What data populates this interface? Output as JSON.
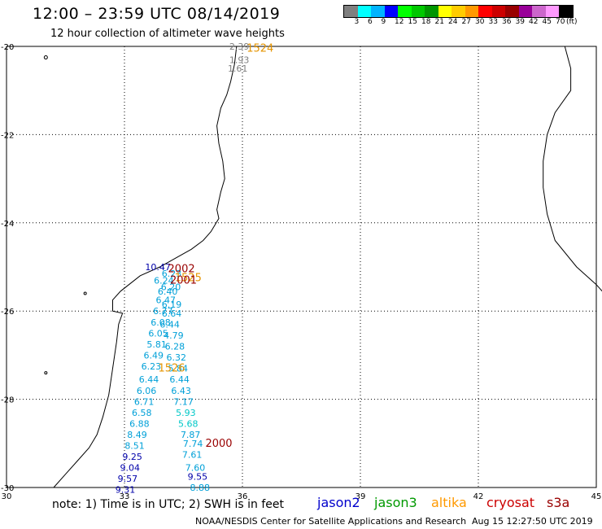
{
  "header": {
    "title": "12:00 – 23:59 UTC 08/14/2019",
    "subtitle": "12 hour collection of altimeter wave heights"
  },
  "color_scale": {
    "colors": [
      "#7f7f7f",
      "#00ffff",
      "#00b4ff",
      "#0000ff",
      "#00ff00",
      "#00c800",
      "#009600",
      "#ffff00",
      "#ffcc00",
      "#ff9900",
      "#ff0000",
      "#cc0000",
      "#990000",
      "#990099",
      "#cc66cc",
      "#ff99ff",
      "#000000"
    ],
    "labels": [
      "3",
      "6",
      "9",
      "12",
      "15",
      "18",
      "21",
      "24",
      "27",
      "30",
      "33",
      "36",
      "39",
      "42",
      "45",
      "70",
      "(ft)"
    ]
  },
  "map": {
    "lon_range": [
      30,
      45
    ],
    "lat_range": [
      -30,
      -20
    ],
    "lon_ticks": [
      "30",
      "33",
      "36",
      "39",
      "42",
      "45"
    ],
    "lat_ticks": [
      "-20",
      "-22",
      "-24",
      "-26",
      "-28",
      "-30"
    ],
    "grid": "dotted",
    "coastline_color": "#000000"
  },
  "observations": [
    {
      "lat": -20.0,
      "lon": 35.92,
      "value": "2.39",
      "color": "#7f7f7f"
    },
    {
      "lat": -20.3,
      "lon": 35.92,
      "value": "1.93",
      "color": "#7f7f7f"
    },
    {
      "lat": -20.5,
      "lon": 35.88,
      "value": "1.61",
      "color": "#7f7f7f"
    },
    {
      "lat": -25.0,
      "lon": 33.85,
      "value": "10.47",
      "color": "#0000aa"
    },
    {
      "lat": -25.15,
      "lon": 34.2,
      "value": "6.23",
      "color": "#00a0d8"
    },
    {
      "lat": -25.3,
      "lon": 34.0,
      "value": "6.24",
      "color": "#00a0d8"
    },
    {
      "lat": -25.45,
      "lon": 34.18,
      "value": "6.20",
      "color": "#00a0d8"
    },
    {
      "lat": -25.55,
      "lon": 34.1,
      "value": "6.40",
      "color": "#00a0d8"
    },
    {
      "lat": -25.75,
      "lon": 34.05,
      "value": "6.47",
      "color": "#00a0d8"
    },
    {
      "lat": -25.85,
      "lon": 34.2,
      "value": "6.19",
      "color": "#00a0d8"
    },
    {
      "lat": -26.0,
      "lon": 33.98,
      "value": "6.77",
      "color": "#00a0d8"
    },
    {
      "lat": -26.05,
      "lon": 34.2,
      "value": "6.64",
      "color": "#00a0d8"
    },
    {
      "lat": -26.25,
      "lon": 33.92,
      "value": "6.08",
      "color": "#00a0d8"
    },
    {
      "lat": -26.3,
      "lon": 34.15,
      "value": "6.44",
      "color": "#00a0d8"
    },
    {
      "lat": -26.5,
      "lon": 33.86,
      "value": "6.05",
      "color": "#00a0d8"
    },
    {
      "lat": -26.55,
      "lon": 34.25,
      "value": "4.79",
      "color": "#00a0d8"
    },
    {
      "lat": -26.75,
      "lon": 33.82,
      "value": "5.81",
      "color": "#00a0d8"
    },
    {
      "lat": -26.8,
      "lon": 34.28,
      "value": "6.28",
      "color": "#00a0d8"
    },
    {
      "lat": -27.0,
      "lon": 33.74,
      "value": "6.49",
      "color": "#00a0d8"
    },
    {
      "lat": -27.05,
      "lon": 34.32,
      "value": "6.32",
      "color": "#00a0d8"
    },
    {
      "lat": -27.25,
      "lon": 33.68,
      "value": "6.23",
      "color": "#00a0d8"
    },
    {
      "lat": -27.3,
      "lon": 34.36,
      "value": "5.84",
      "color": "#00a0d8"
    },
    {
      "lat": -27.55,
      "lon": 33.62,
      "value": "6.44",
      "color": "#00a0d8"
    },
    {
      "lat": -27.55,
      "lon": 34.4,
      "value": "6.44",
      "color": "#00a0d8"
    },
    {
      "lat": -27.8,
      "lon": 33.56,
      "value": "6.06",
      "color": "#00a0d8"
    },
    {
      "lat": -27.8,
      "lon": 34.44,
      "value": "6.43",
      "color": "#00a0d8"
    },
    {
      "lat": -28.05,
      "lon": 33.5,
      "value": "6.71",
      "color": "#00a0d8"
    },
    {
      "lat": -28.05,
      "lon": 34.5,
      "value": "7.17",
      "color": "#00a0d8"
    },
    {
      "lat": -28.3,
      "lon": 33.44,
      "value": "6.58",
      "color": "#00a0d8"
    },
    {
      "lat": -28.3,
      "lon": 34.56,
      "value": "5.93",
      "color": "#00c8c8"
    },
    {
      "lat": -28.55,
      "lon": 33.38,
      "value": "6.88",
      "color": "#00a0d8"
    },
    {
      "lat": -28.55,
      "lon": 34.62,
      "value": "5.68",
      "color": "#00c8c8"
    },
    {
      "lat": -28.8,
      "lon": 33.32,
      "value": "8.49",
      "color": "#00a0d8"
    },
    {
      "lat": -28.8,
      "lon": 34.68,
      "value": "7.87",
      "color": "#00a0d8"
    },
    {
      "lat": -29.05,
      "lon": 33.26,
      "value": "8.51",
      "color": "#00a0d8"
    },
    {
      "lat": -29.0,
      "lon": 34.74,
      "value": "7.74",
      "color": "#00a0d8"
    },
    {
      "lat": -29.3,
      "lon": 33.2,
      "value": "9.25",
      "color": "#0000aa"
    },
    {
      "lat": -29.25,
      "lon": 34.72,
      "value": "7.61",
      "color": "#00a0d8"
    },
    {
      "lat": -29.55,
      "lon": 33.14,
      "value": "9.04",
      "color": "#0000aa"
    },
    {
      "lat": -29.55,
      "lon": 34.8,
      "value": "7.60",
      "color": "#00a0d8"
    },
    {
      "lat": -29.8,
      "lon": 33.08,
      "value": "9.57",
      "color": "#0000aa"
    },
    {
      "lat": -29.75,
      "lon": 34.86,
      "value": "9.55",
      "color": "#0000aa"
    },
    {
      "lat": -30.05,
      "lon": 33.02,
      "value": "9.31",
      "color": "#0000aa"
    },
    {
      "lat": -30.0,
      "lon": 34.92,
      "value": "8.88",
      "color": "#00a0d8"
    }
  ],
  "pass_times": [
    {
      "lat": -20.05,
      "lon": 36.45,
      "text": "1524",
      "color": "#e59400"
    },
    {
      "lat": -25.05,
      "lon": 34.45,
      "text": "2002",
      "color": "#990000"
    },
    {
      "lat": -25.25,
      "lon": 34.62,
      "text": "1525",
      "color": "#e59400"
    },
    {
      "lat": -25.3,
      "lon": 34.5,
      "text": "2001",
      "color": "#990000"
    },
    {
      "lat": -27.3,
      "lon": 34.2,
      "text": "1526",
      "color": "#e59400"
    },
    {
      "lat": -29.0,
      "lon": 35.4,
      "text": "2000",
      "color": "#990000"
    }
  ],
  "footer": {
    "note": "note: 1) Time is in UTC; 2) SWH is in feet",
    "satellites": [
      {
        "name": "jason2",
        "color": "#0000cc"
      },
      {
        "name": "jason3",
        "color": "#009900"
      },
      {
        "name": "altika",
        "color": "#ff9900"
      },
      {
        "name": "cryosat",
        "color": "#cc0000"
      },
      {
        "name": "s3a",
        "color": "#990000"
      }
    ],
    "credit": "NOAA/NESDIS Center for Satellite Applications and Research",
    "timestamp": "Aug 15 12:27:50 UTC 2019"
  }
}
